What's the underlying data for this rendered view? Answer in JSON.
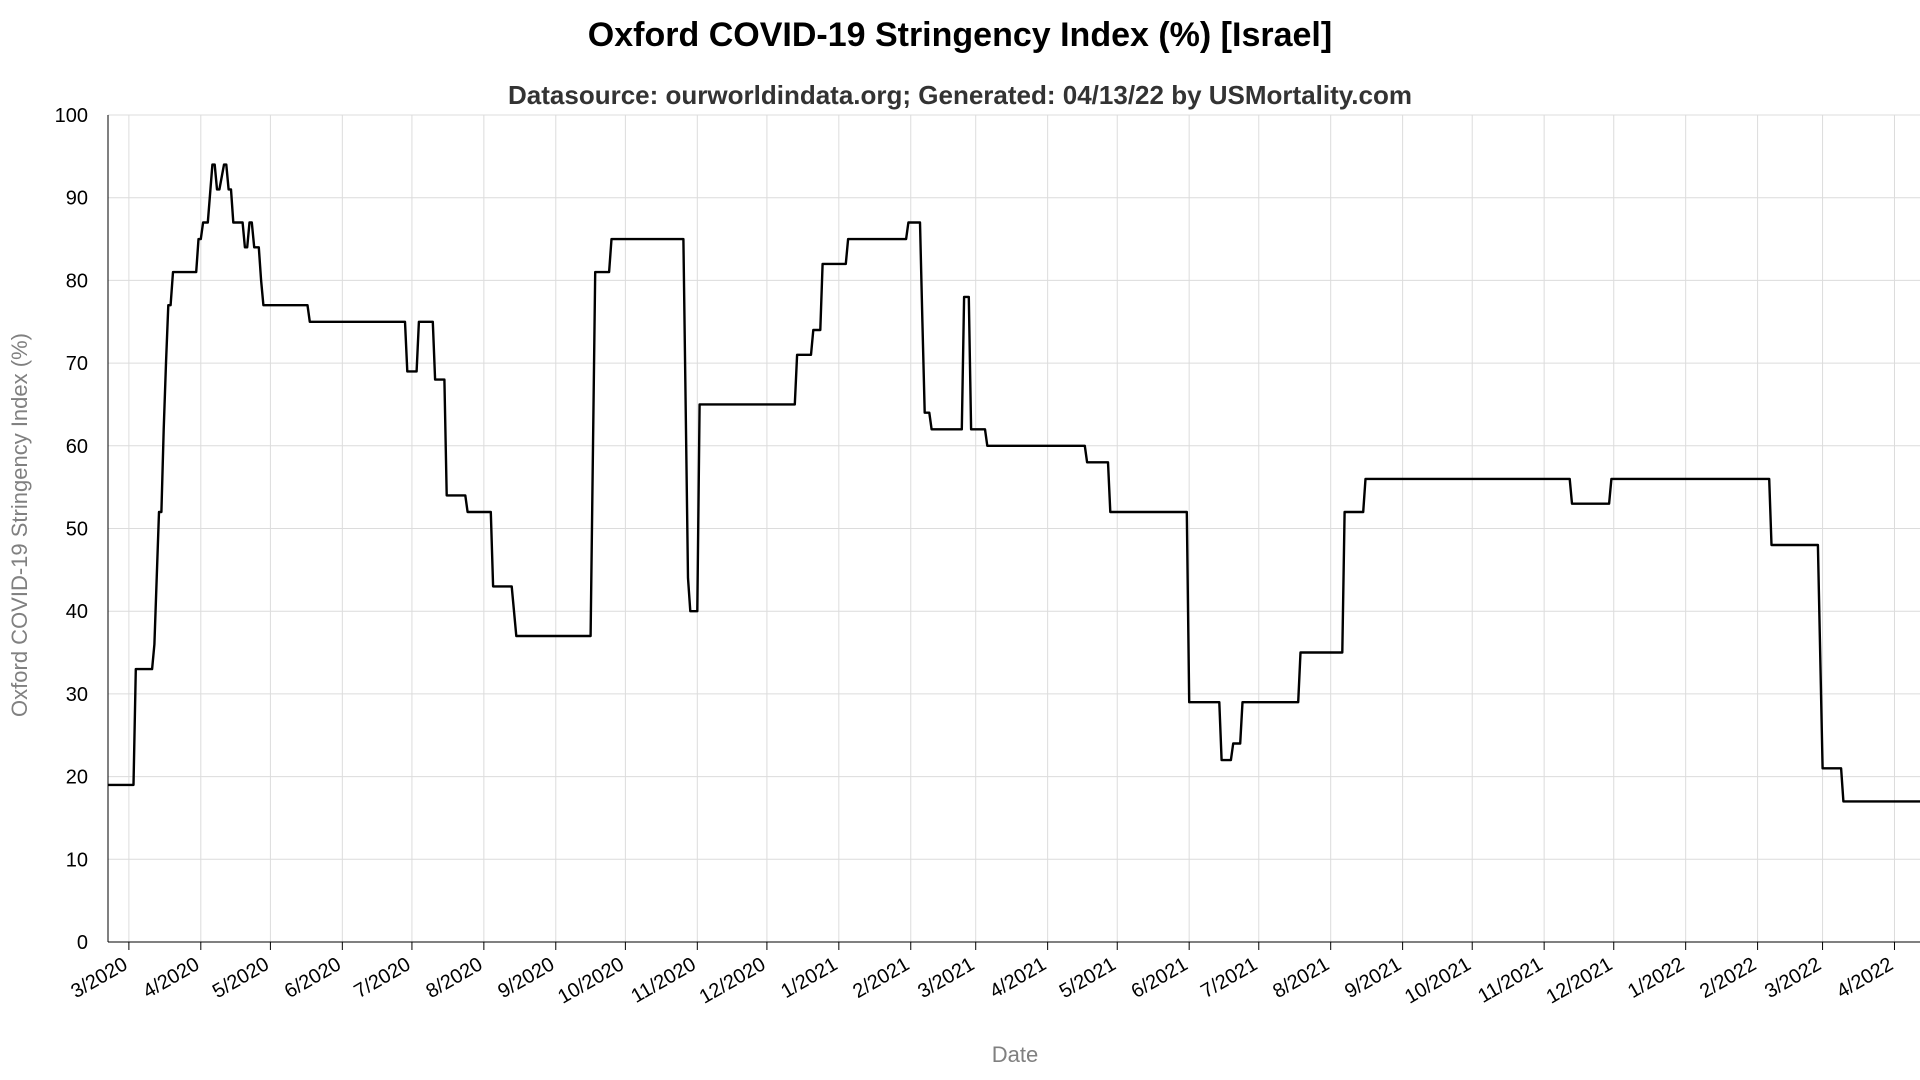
{
  "chart_data": {
    "type": "line",
    "title": "Oxford COVID-19 Stringency Index (%) [Israel]",
    "subtitle": "Datasource: ourworldindata.org; Generated: 04/13/22 by USMortality.com",
    "xlabel": "Date",
    "ylabel": "Oxford COVID-19 Stringency Index (%)",
    "ylim": [
      0,
      100
    ],
    "xlim": [
      "2020-02-21",
      "2022-04-12"
    ],
    "y_ticks": [
      0,
      10,
      20,
      30,
      40,
      50,
      60,
      70,
      80,
      90,
      100
    ],
    "x_ticks": [
      {
        "date": "2020-03-01",
        "label": "3/2020"
      },
      {
        "date": "2020-04-01",
        "label": "4/2020"
      },
      {
        "date": "2020-05-01",
        "label": "5/2020"
      },
      {
        "date": "2020-06-01",
        "label": "6/2020"
      },
      {
        "date": "2020-07-01",
        "label": "7/2020"
      },
      {
        "date": "2020-08-01",
        "label": "8/2020"
      },
      {
        "date": "2020-09-01",
        "label": "9/2020"
      },
      {
        "date": "2020-10-01",
        "label": "10/2020"
      },
      {
        "date": "2020-11-01",
        "label": "11/2020"
      },
      {
        "date": "2020-12-01",
        "label": "12/2020"
      },
      {
        "date": "2021-01-01",
        "label": "1/2021"
      },
      {
        "date": "2021-02-01",
        "label": "2/2021"
      },
      {
        "date": "2021-03-01",
        "label": "3/2021"
      },
      {
        "date": "2021-04-01",
        "label": "4/2021"
      },
      {
        "date": "2021-05-01",
        "label": "5/2021"
      },
      {
        "date": "2021-06-01",
        "label": "6/2021"
      },
      {
        "date": "2021-07-01",
        "label": "7/2021"
      },
      {
        "date": "2021-08-01",
        "label": "8/2021"
      },
      {
        "date": "2021-09-01",
        "label": "9/2021"
      },
      {
        "date": "2021-10-01",
        "label": "10/2021"
      },
      {
        "date": "2021-11-01",
        "label": "11/2021"
      },
      {
        "date": "2021-12-01",
        "label": "12/2021"
      },
      {
        "date": "2022-01-01",
        "label": "1/2022"
      },
      {
        "date": "2022-02-01",
        "label": "2/2022"
      },
      {
        "date": "2022-03-01",
        "label": "3/2022"
      },
      {
        "date": "2022-04-01",
        "label": "4/2022"
      }
    ],
    "grid": true,
    "legend": "none",
    "series": [
      {
        "color": "#000000",
        "points": [
          [
            "2020-02-21",
            19
          ],
          [
            "2020-03-03",
            19
          ],
          [
            "2020-03-04",
            33
          ],
          [
            "2020-03-11",
            33
          ],
          [
            "2020-03-12",
            36
          ],
          [
            "2020-03-14",
            52
          ],
          [
            "2020-03-15",
            52
          ],
          [
            "2020-03-16",
            62
          ],
          [
            "2020-03-17",
            70
          ],
          [
            "2020-03-18",
            77
          ],
          [
            "2020-03-19",
            77
          ],
          [
            "2020-03-20",
            81
          ],
          [
            "2020-03-30",
            81
          ],
          [
            "2020-03-31",
            85
          ],
          [
            "2020-04-01",
            85
          ],
          [
            "2020-04-02",
            87
          ],
          [
            "2020-04-04",
            87
          ],
          [
            "2020-04-06",
            94
          ],
          [
            "2020-04-07",
            94
          ],
          [
            "2020-04-08",
            91
          ],
          [
            "2020-04-09",
            91
          ],
          [
            "2020-04-11",
            94
          ],
          [
            "2020-04-12",
            94
          ],
          [
            "2020-04-13",
            91
          ],
          [
            "2020-04-14",
            91
          ],
          [
            "2020-04-15",
            87
          ],
          [
            "2020-04-19",
            87
          ],
          [
            "2020-04-20",
            84
          ],
          [
            "2020-04-21",
            84
          ],
          [
            "2020-04-22",
            87
          ],
          [
            "2020-04-23",
            87
          ],
          [
            "2020-04-24",
            84
          ],
          [
            "2020-04-26",
            84
          ],
          [
            "2020-04-27",
            80
          ],
          [
            "2020-04-28",
            77
          ],
          [
            "2020-05-17",
            77
          ],
          [
            "2020-05-18",
            75
          ],
          [
            "2020-06-28",
            75
          ],
          [
            "2020-06-29",
            69
          ],
          [
            "2020-07-03",
            69
          ],
          [
            "2020-07-04",
            75
          ],
          [
            "2020-07-10",
            75
          ],
          [
            "2020-07-11",
            68
          ],
          [
            "2020-07-15",
            68
          ],
          [
            "2020-07-16",
            54
          ],
          [
            "2020-07-24",
            54
          ],
          [
            "2020-07-25",
            52
          ],
          [
            "2020-08-04",
            52
          ],
          [
            "2020-08-05",
            43
          ],
          [
            "2020-08-13",
            43
          ],
          [
            "2020-08-15",
            37
          ],
          [
            "2020-09-16",
            37
          ],
          [
            "2020-09-18",
            81
          ],
          [
            "2020-09-24",
            81
          ],
          [
            "2020-09-25",
            85
          ],
          [
            "2020-10-26",
            85
          ],
          [
            "2020-10-28",
            44
          ],
          [
            "2020-10-29",
            40
          ],
          [
            "2020-11-01",
            40
          ],
          [
            "2020-11-02",
            65
          ],
          [
            "2020-12-13",
            65
          ],
          [
            "2020-12-14",
            71
          ],
          [
            "2020-12-20",
            71
          ],
          [
            "2020-12-21",
            74
          ],
          [
            "2020-12-24",
            74
          ],
          [
            "2020-12-25",
            82
          ],
          [
            "2021-01-04",
            82
          ],
          [
            "2021-01-05",
            85
          ],
          [
            "2021-01-30",
            85
          ],
          [
            "2021-01-31",
            87
          ],
          [
            "2021-02-05",
            87
          ],
          [
            "2021-02-06",
            75
          ],
          [
            "2021-02-07",
            64
          ],
          [
            "2021-02-09",
            64
          ],
          [
            "2021-02-10",
            62
          ],
          [
            "2021-02-23",
            62
          ],
          [
            "2021-02-24",
            78
          ],
          [
            "2021-02-26",
            78
          ],
          [
            "2021-02-27",
            62
          ],
          [
            "2021-03-05",
            62
          ],
          [
            "2021-03-06",
            60
          ],
          [
            "2021-04-17",
            60
          ],
          [
            "2021-04-18",
            58
          ],
          [
            "2021-04-27",
            58
          ],
          [
            "2021-04-28",
            52
          ],
          [
            "2021-05-31",
            52
          ],
          [
            "2021-06-01",
            29
          ],
          [
            "2021-06-14",
            29
          ],
          [
            "2021-06-15",
            22
          ],
          [
            "2021-06-19",
            22
          ],
          [
            "2021-06-20",
            24
          ],
          [
            "2021-06-23",
            24
          ],
          [
            "2021-06-24",
            29
          ],
          [
            "2021-07-18",
            29
          ],
          [
            "2021-07-19",
            35
          ],
          [
            "2021-08-06",
            35
          ],
          [
            "2021-08-07",
            52
          ],
          [
            "2021-08-15",
            52
          ],
          [
            "2021-08-16",
            56
          ],
          [
            "2021-11-12",
            56
          ],
          [
            "2021-11-13",
            53
          ],
          [
            "2021-11-29",
            53
          ],
          [
            "2021-11-30",
            56
          ],
          [
            "2022-02-06",
            56
          ],
          [
            "2022-02-07",
            48
          ],
          [
            "2022-02-27",
            48
          ],
          [
            "2022-03-01",
            21
          ],
          [
            "2022-03-09",
            21
          ],
          [
            "2022-03-10",
            17
          ],
          [
            "2022-04-12",
            17
          ]
        ]
      }
    ]
  }
}
